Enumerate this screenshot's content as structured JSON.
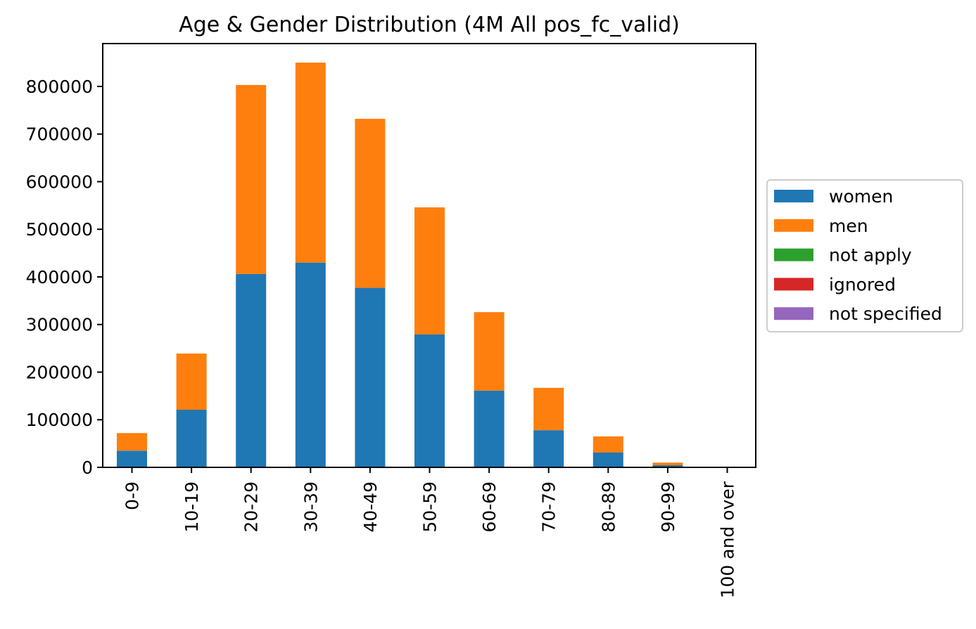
{
  "chart_data": {
    "type": "bar",
    "stacked": true,
    "title": "Age & Gender Distribution (4M All pos_fc_valid)",
    "xlabel": "",
    "ylabel": "",
    "categories": [
      "0-9",
      "10-19",
      "20-29",
      "30-39",
      "40-49",
      "50-59",
      "60-69",
      "70-79",
      "80-89",
      "90-99",
      "100 and over"
    ],
    "series": [
      {
        "name": "women",
        "color": "#1f77b4",
        "values": [
          35000,
          121000,
          406000,
          430000,
          377000,
          279000,
          161000,
          78000,
          31000,
          4500,
          300
        ]
      },
      {
        "name": "men",
        "color": "#ff7f0e",
        "values": [
          37000,
          118000,
          397000,
          420000,
          355000,
          267000,
          165000,
          89000,
          34000,
          5500,
          300
        ]
      },
      {
        "name": "not apply",
        "color": "#2ca02c",
        "values": [
          0,
          0,
          0,
          0,
          0,
          0,
          0,
          0,
          0,
          0,
          0
        ]
      },
      {
        "name": "ignored",
        "color": "#d62728",
        "values": [
          0,
          0,
          0,
          0,
          0,
          0,
          0,
          0,
          0,
          0,
          0
        ]
      },
      {
        "name": "not specified",
        "color": "#9467bd",
        "values": [
          0,
          0,
          0,
          0,
          0,
          0,
          0,
          0,
          0,
          0,
          0
        ]
      }
    ],
    "ylim": [
      0,
      890000
    ],
    "yticks": [
      0,
      100000,
      200000,
      300000,
      400000,
      500000,
      600000,
      700000,
      800000
    ],
    "grid": false,
    "legend_position": "outside right"
  }
}
